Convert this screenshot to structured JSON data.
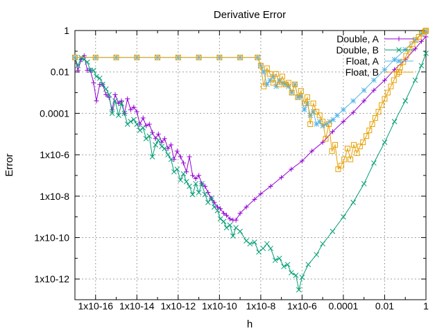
{
  "chart_data": {
    "type": "line",
    "title": "Derivative Error",
    "xlabel": "h",
    "ylabel": "Error",
    "log_x": true,
    "log_y": true,
    "xlim": [
      1e-17,
      1
    ],
    "ylim": [
      1e-13,
      1
    ],
    "grid": true,
    "legend_position": "top-right",
    "x_tick_labels": [
      "1x10-16",
      "1x10-14",
      "1x10-12",
      "1x10-10",
      "1x10-8",
      "1x10-6",
      "0.0001",
      "0.01",
      "1"
    ],
    "y_tick_labels": [
      "1x10-12",
      "1x10-10",
      "1x10-8",
      "1x10-6",
      "0.0001",
      "0.01",
      "1"
    ],
    "series": [
      {
        "name": "Double, A",
        "color": "#9400d3",
        "marker": "plus",
        "points": [
          [
            1e-17,
            0.05
          ],
          [
            1.4e-17,
            0.012
          ],
          [
            2e-17,
            0.04
          ],
          [
            2.8e-17,
            0.06
          ],
          [
            4e-17,
            0.012
          ],
          [
            5.6e-17,
            0.012
          ],
          [
            8e-17,
            0.003
          ],
          [
            1.1e-16,
            0.0004
          ],
          [
            1.6e-16,
            0.0025
          ],
          [
            2.2e-16,
            0.0025
          ],
          [
            3.2e-16,
            0.0008
          ],
          [
            4.5e-16,
            0.0006
          ],
          [
            6.3e-16,
            0.00015
          ],
          [
            8.9e-16,
            0.0008
          ],
          [
            1.3e-15,
            0.0003
          ],
          [
            1.8e-15,
            0.0004
          ],
          [
            2.5e-15,
            0.0001
          ],
          [
            3.5e-15,
            0.0005
          ],
          [
            5e-15,
            0.00015
          ],
          [
            7.1e-15,
            0.0002
          ],
          [
            1e-14,
            0.00012
          ],
          [
            1.4e-14,
            3e-05
          ],
          [
            2e-14,
            6e-05
          ],
          [
            2.8e-14,
            2.5e-05
          ],
          [
            4e-14,
            3e-05
          ],
          [
            5.6e-14,
            1.2e-05
          ],
          [
            8e-14,
            6e-06
          ],
          [
            1.1e-13,
            1e-05
          ],
          [
            1.6e-13,
            4e-06
          ],
          [
            2.2e-13,
            6e-06
          ],
          [
            3.2e-13,
            2e-06
          ],
          [
            4.5e-13,
            3e-06
          ],
          [
            6.3e-13,
            6e-07
          ],
          [
            8.9e-13,
            1.5e-06
          ],
          [
            1.3e-12,
            8e-07
          ],
          [
            1.8e-12,
            4e-07
          ],
          [
            2.5e-12,
            1.5e-07
          ],
          [
            3.5e-12,
            8e-07
          ],
          [
            5e-12,
            1e-07
          ],
          [
            7.1e-12,
            7e-08
          ],
          [
            1e-11,
            1e-07
          ],
          [
            1.4e-11,
            4e-08
          ],
          [
            2e-11,
            3e-08
          ],
          [
            2.8e-11,
            1.5e-08
          ],
          [
            4e-11,
            8e-09
          ],
          [
            5.6e-11,
            5e-09
          ],
          [
            8e-11,
            3e-09
          ],
          [
            1.1e-10,
            2.5e-09
          ],
          [
            1.6e-10,
            1.5e-09
          ],
          [
            2.2e-10,
            1.2e-09
          ],
          [
            3.2e-10,
            8e-10
          ],
          [
            4.5e-10,
            7e-10
          ],
          [
            6.3e-10,
            7e-10
          ],
          [
            1e-09,
            1.5e-09
          ],
          [
            2e-09,
            3e-09
          ],
          [
            5e-09,
            7e-09
          ],
          [
            1e-08,
            1.3e-08
          ],
          [
            3e-08,
            3e-08
          ],
          [
            1e-07,
            8e-08
          ],
          [
            3e-07,
            2e-07
          ],
          [
            1e-06,
            5e-07
          ],
          [
            3e-06,
            1.5e-06
          ],
          [
            1e-05,
            4e-06
          ],
          [
            3e-05,
            1.3e-05
          ],
          [
            0.0001,
            4e-05
          ],
          [
            0.0003,
            0.00011
          ],
          [
            0.001,
            0.0004
          ],
          [
            0.003,
            0.0013
          ],
          [
            0.01,
            0.004
          ],
          [
            0.03,
            0.013
          ],
          [
            0.1,
            0.04
          ],
          [
            0.3,
            0.13
          ],
          [
            0.6,
            0.3
          ],
          [
            1,
            0.5
          ]
        ]
      },
      {
        "name": "Double, B",
        "color": "#009e73",
        "marker": "cross",
        "points": [
          [
            1e-17,
            0.05
          ],
          [
            1.4e-17,
            0.02
          ],
          [
            2e-17,
            0.05
          ],
          [
            2.8e-17,
            0.04
          ],
          [
            4e-17,
            0.03
          ],
          [
            5.6e-17,
            0.012
          ],
          [
            8e-17,
            0.012
          ],
          [
            1.1e-16,
            0.006
          ],
          [
            1.6e-16,
            0.005
          ],
          [
            2.2e-16,
            0.0025
          ],
          [
            3.2e-16,
            0.0015
          ],
          [
            4.5e-16,
            0.0008
          ],
          [
            6.3e-16,
            0.0001
          ],
          [
            8.9e-16,
            0.0004
          ],
          [
            1.3e-15,
            8e-05
          ],
          [
            1.8e-15,
            0.0003
          ],
          [
            2.5e-15,
            0.0001
          ],
          [
            3.5e-15,
            3e-05
          ],
          [
            5e-15,
            4e-05
          ],
          [
            7.1e-15,
            5e-05
          ],
          [
            1e-14,
            3e-05
          ],
          [
            1.4e-14,
            1.5e-05
          ],
          [
            2e-14,
            2e-05
          ],
          [
            2.8e-14,
            6e-06
          ],
          [
            4e-14,
            8e-06
          ],
          [
            5.6e-14,
            8e-07
          ],
          [
            8e-14,
            3e-06
          ],
          [
            1.1e-13,
            5e-06
          ],
          [
            1.6e-13,
            2.5e-06
          ],
          [
            2.2e-13,
            2e-06
          ],
          [
            3.2e-13,
            1e-06
          ],
          [
            4.5e-13,
            6e-07
          ],
          [
            6.3e-13,
            1.5e-07
          ],
          [
            8.9e-13,
            2e-07
          ],
          [
            1.3e-12,
            6e-08
          ],
          [
            1.8e-12,
            1.2e-07
          ],
          [
            2.5e-12,
            5e-08
          ],
          [
            3.5e-12,
            3e-08
          ],
          [
            5e-12,
            1.2e-08
          ],
          [
            7.1e-12,
            4e-08
          ],
          [
            1e-11,
            1.5e-08
          ],
          [
            1.4e-11,
            4e-08
          ],
          [
            2e-11,
            1.2e-08
          ],
          [
            2.8e-11,
            5e-09
          ],
          [
            4e-11,
            8e-09
          ],
          [
            5.6e-11,
            3e-09
          ],
          [
            8e-11,
            2e-09
          ],
          [
            1.1e-10,
            8e-10
          ],
          [
            1.6e-10,
            6e-10
          ],
          [
            2.2e-10,
            3e-10
          ],
          [
            3.2e-10,
            4e-10
          ],
          [
            4.5e-10,
            1.2e-10
          ],
          [
            6.3e-10,
            3e-10
          ],
          [
            1e-09,
            2e-10
          ],
          [
            2e-09,
            7e-11
          ],
          [
            3e-09,
            5e-11
          ],
          [
            5e-09,
            6e-11
          ],
          [
            8e-09,
            2e-11
          ],
          [
            1.3e-08,
            3e-11
          ],
          [
            2e-08,
            5e-11
          ],
          [
            3e-08,
            3e-11
          ],
          [
            5e-08,
            8e-12
          ],
          [
            8e-08,
            1e-11
          ],
          [
            1.3e-07,
            4e-12
          ],
          [
            2e-07,
            5e-12
          ],
          [
            3e-07,
            2e-12
          ],
          [
            5e-07,
            1.5e-12
          ],
          [
            7e-07,
            3e-13
          ],
          [
            1e-06,
            1.2e-12
          ],
          [
            2e-06,
            5e-12
          ],
          [
            5e-06,
            1.5e-11
          ],
          [
            1e-05,
            5e-11
          ],
          [
            3e-05,
            2e-10
          ],
          [
            0.0001,
            1e-09
          ],
          [
            0.0003,
            5e-09
          ],
          [
            0.001,
            4e-08
          ],
          [
            0.003,
            4e-07
          ],
          [
            0.01,
            4e-06
          ],
          [
            0.03,
            4e-05
          ],
          [
            0.1,
            0.0004
          ],
          [
            0.3,
            0.004
          ],
          [
            0.6,
            0.02
          ],
          [
            1,
            0.08
          ]
        ]
      },
      {
        "name": "Float, A",
        "color": "#56b4e9",
        "marker": "star",
        "points": [
          [
            1e-17,
            0.05
          ],
          [
            1e-16,
            0.05
          ],
          [
            1e-15,
            0.05
          ],
          [
            1e-14,
            0.05
          ],
          [
            1e-13,
            0.05
          ],
          [
            1e-12,
            0.05
          ],
          [
            1e-11,
            0.05
          ],
          [
            1e-10,
            0.05
          ],
          [
            1e-09,
            0.05
          ],
          [
            7e-09,
            0.05
          ],
          [
            1e-08,
            0.02
          ],
          [
            1.4e-08,
            0.01
          ],
          [
            2e-08,
            0.0025
          ],
          [
            2.8e-08,
            0.004
          ],
          [
            4e-08,
            0.006
          ],
          [
            5.6e-08,
            0.002
          ],
          [
            8e-08,
            0.004
          ],
          [
            1.1e-07,
            0.003
          ],
          [
            1.6e-07,
            0.0025
          ],
          [
            2.2e-07,
            0.002
          ],
          [
            3.2e-07,
            0.001
          ],
          [
            4.5e-07,
            0.0025
          ],
          [
            6.3e-07,
            0.0006
          ],
          [
            8.9e-07,
            0.0007
          ],
          [
            1.3e-06,
            0.00015
          ],
          [
            1.8e-06,
            0.0003
          ],
          [
            2.5e-06,
            8e-05
          ],
          [
            3.5e-06,
            0.00012
          ],
          [
            5e-06,
            3e-05
          ],
          [
            7.1e-06,
            4e-05
          ],
          [
            1e-05,
            2.5e-05
          ],
          [
            1.5e-05,
            3e-05
          ],
          [
            2.2e-05,
            4e-05
          ],
          [
            3.2e-05,
            5e-05
          ],
          [
            5e-05,
            8e-05
          ],
          [
            0.0001,
            0.00015
          ],
          [
            0.0003,
            0.0004
          ],
          [
            0.001,
            0.0013
          ],
          [
            0.003,
            0.004
          ],
          [
            0.01,
            0.013
          ],
          [
            0.03,
            0.04
          ],
          [
            0.1,
            0.12
          ],
          [
            0.3,
            0.35
          ],
          [
            0.6,
            0.7
          ],
          [
            1,
            0.9
          ]
        ]
      },
      {
        "name": "Float, B",
        "color": "#e69f00",
        "marker": "square",
        "points": [
          [
            1e-17,
            0.05
          ],
          [
            1e-16,
            0.05
          ],
          [
            1e-15,
            0.05
          ],
          [
            1e-14,
            0.05
          ],
          [
            1e-13,
            0.05
          ],
          [
            1e-12,
            0.05
          ],
          [
            1e-11,
            0.05
          ],
          [
            1e-10,
            0.05
          ],
          [
            1e-09,
            0.05
          ],
          [
            7e-09,
            0.05
          ],
          [
            1e-08,
            0.02
          ],
          [
            1.4e-08,
            0.002
          ],
          [
            2e-08,
            0.015
          ],
          [
            2.8e-08,
            0.008
          ],
          [
            4e-08,
            0.003
          ],
          [
            5.6e-08,
            0.008
          ],
          [
            8e-08,
            0.0025
          ],
          [
            1.1e-07,
            0.006
          ],
          [
            1.6e-07,
            0.0025
          ],
          [
            2.2e-07,
            0.003
          ],
          [
            3.2e-07,
            0.001
          ],
          [
            4.5e-07,
            0.0025
          ],
          [
            6.3e-07,
            0.0006
          ],
          [
            8.9e-07,
            0.0012
          ],
          [
            1.3e-06,
            0.0003
          ],
          [
            1.8e-06,
            0.0006
          ],
          [
            2.5e-06,
            3e-05
          ],
          [
            3.5e-06,
            0.0003
          ],
          [
            5e-06,
            0.00012
          ],
          [
            7.1e-06,
            8e-05
          ],
          [
            1e-05,
            4e-05
          ],
          [
            1.4e-05,
            6e-06
          ],
          [
            2e-05,
            3e-05
          ],
          [
            2.8e-05,
            1.5e-06
          ],
          [
            4e-05,
            3e-06
          ],
          [
            5.6e-05,
            2e-07
          ],
          [
            8e-05,
            3e-07
          ],
          [
            0.00011,
            6e-07
          ],
          [
            0.00016,
            2e-06
          ],
          [
            0.00022,
            6e-07
          ],
          [
            0.00032,
            3e-06
          ],
          [
            0.00045,
            1.2e-06
          ],
          [
            0.00063,
            2.5e-06
          ],
          [
            0.00089,
            4e-06
          ],
          [
            0.0013,
            8e-06
          ],
          [
            0.0018,
            1.5e-05
          ],
          [
            0.0025,
            3e-05
          ],
          [
            0.0035,
            6e-05
          ],
          [
            0.005,
            0.00012
          ],
          [
            0.0071,
            0.00025
          ],
          [
            0.01,
            0.0005
          ],
          [
            0.014,
            0.001
          ],
          [
            0.02,
            0.002
          ],
          [
            0.028,
            0.004
          ],
          [
            0.04,
            0.008
          ],
          [
            0.056,
            0.016
          ],
          [
            0.08,
            0.03
          ],
          [
            0.11,
            0.06
          ],
          [
            0.16,
            0.12
          ],
          [
            0.22,
            0.22
          ],
          [
            0.32,
            0.35
          ],
          [
            0.45,
            0.5
          ],
          [
            0.63,
            0.7
          ],
          [
            0.89,
            0.9
          ],
          [
            1,
            1
          ]
        ]
      }
    ]
  }
}
